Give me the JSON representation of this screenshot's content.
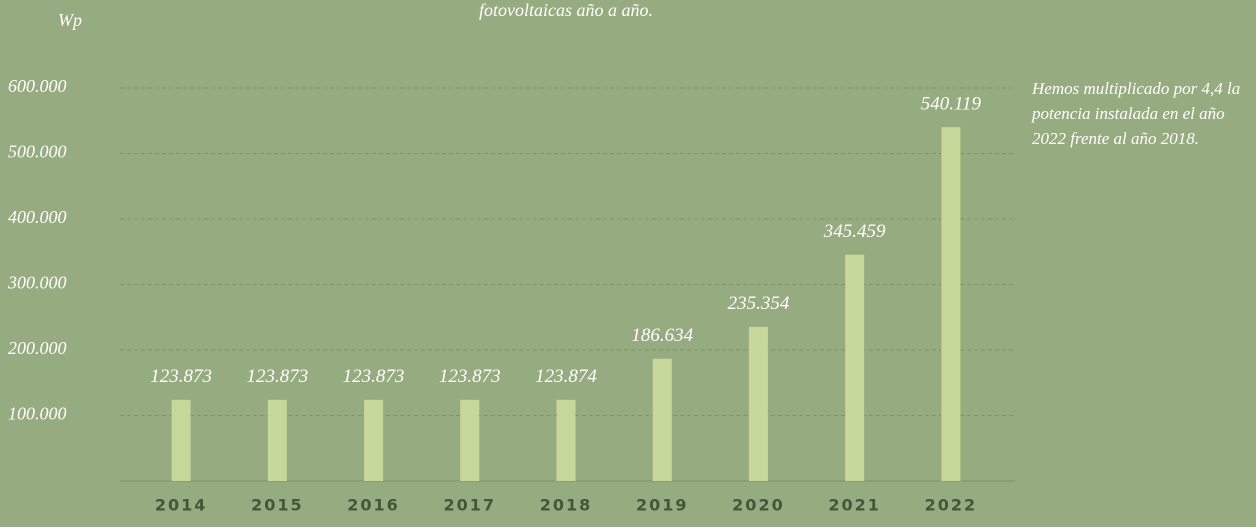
{
  "chart_data": {
    "type": "bar",
    "title": "fotovoltaicas año a año.",
    "y_label": "Wp",
    "annotation": "Hemos multiplicado por 4,4 la potencia instalada en el año 2022 frente al año 2018.",
    "categories": [
      "2014",
      "2015",
      "2016",
      "2017",
      "2018",
      "2019",
      "2020",
      "2021",
      "2022"
    ],
    "values": [
      123873,
      123873,
      123873,
      123873,
      123874,
      186634,
      235354,
      345459,
      540119
    ],
    "value_labels": [
      "123.873",
      "123.873",
      "123.873",
      "123.873",
      "123.874",
      "186.634",
      "235.354",
      "345.459",
      "540.119"
    ],
    "color": "#c5d89a",
    "ylim": [
      0,
      600000
    ],
    "yticks": [
      {
        "value": 100000,
        "label": "100.000"
      },
      {
        "value": 200000,
        "label": "200.000"
      },
      {
        "value": 300000,
        "label": "300.000"
      },
      {
        "value": 400000,
        "label": "400.000"
      },
      {
        "value": 500000,
        "label": "500.000"
      },
      {
        "value": 600000,
        "label": "600.000"
      }
    ],
    "grid": true
  }
}
